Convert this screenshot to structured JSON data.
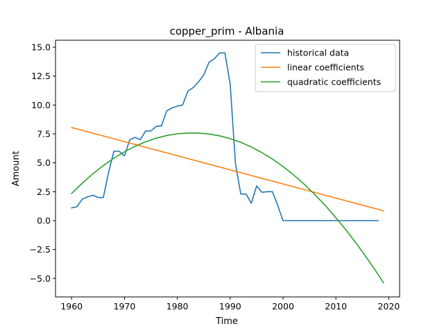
{
  "chart_data": {
    "type": "line",
    "title": "copper_prim - Albania",
    "xlabel": "Time",
    "ylabel": "Amount",
    "xlim": [
      1956.95,
      2022.05
    ],
    "ylim": [
      -6.6,
      15.6
    ],
    "xticks": [
      1960,
      1970,
      1980,
      1990,
      2000,
      2010,
      2020
    ],
    "yticks": [
      -5.0,
      -2.5,
      0.0,
      2.5,
      5.0,
      7.5,
      10.0,
      12.5,
      15.0
    ],
    "ytick_labels": [
      "−5.0",
      "−2.5",
      "0.0",
      "2.5",
      "5.0",
      "7.5",
      "10.0",
      "12.5",
      "15.0"
    ],
    "grid": false,
    "legend_position": "top-right",
    "series": [
      {
        "name": "historical data",
        "color": "#1f77b4",
        "x": [
          1960,
          1961,
          1962,
          1963,
          1964,
          1965,
          1966,
          1967,
          1968,
          1969,
          1970,
          1971,
          1972,
          1973,
          1974,
          1975,
          1976,
          1977,
          1978,
          1979,
          1980,
          1981,
          1982,
          1983,
          1984,
          1985,
          1986,
          1987,
          1988,
          1989,
          1990,
          1991,
          1992,
          1993,
          1994,
          1995,
          1996,
          1997,
          1998,
          1999,
          2000,
          2001,
          2002,
          2003,
          2004,
          2005,
          2006,
          2007,
          2008,
          2009,
          2010,
          2011,
          2012,
          2013,
          2014,
          2015,
          2016,
          2017,
          2018
        ],
        "y": [
          1.1,
          1.2,
          1.85,
          2.05,
          2.2,
          2.0,
          2.0,
          4.2,
          6.0,
          6.0,
          5.6,
          7.0,
          7.2,
          7.0,
          7.75,
          7.75,
          8.15,
          8.2,
          9.5,
          9.75,
          9.9,
          10.0,
          11.2,
          11.5,
          12.0,
          12.6,
          13.7,
          14.0,
          14.5,
          14.5,
          11.8,
          4.9,
          2.3,
          2.3,
          1.5,
          3.0,
          2.45,
          2.5,
          2.5,
          1.3,
          0.0,
          0.0,
          0.0,
          0.0,
          0.0,
          0.0,
          0.0,
          0.0,
          0.0,
          0.0,
          0.0,
          0.0,
          0.0,
          0.0,
          0.0,
          0.0,
          0.0,
          0.0,
          0.0
        ]
      },
      {
        "name": "linear coefficients",
        "color": "#ff7f0e",
        "x": [
          1960,
          2019
        ],
        "y": [
          8.05,
          0.85
        ]
      },
      {
        "name": "quadratic coefficients",
        "color": "#2ca02c",
        "x": [
          1960,
          1962,
          1964,
          1966,
          1968,
          1970,
          1972,
          1974,
          1976,
          1978,
          1980,
          1982,
          1983,
          1984,
          1986,
          1988,
          1990,
          1992,
          1994,
          1996,
          1998,
          2000,
          2002,
          2004,
          2006,
          2008,
          2010,
          2012,
          2014,
          2016,
          2018,
          2019
        ],
        "y": [
          2.35,
          3.24,
          4.04,
          4.76,
          5.4,
          5.95,
          6.43,
          6.82,
          7.13,
          7.36,
          7.51,
          7.57,
          7.58,
          7.57,
          7.49,
          7.33,
          7.09,
          6.77,
          6.37,
          5.88,
          5.32,
          4.68,
          3.95,
          3.15,
          2.26,
          1.3,
          0.25,
          -0.86,
          -2.06,
          -3.33,
          -4.67,
          -5.37
        ]
      }
    ]
  }
}
